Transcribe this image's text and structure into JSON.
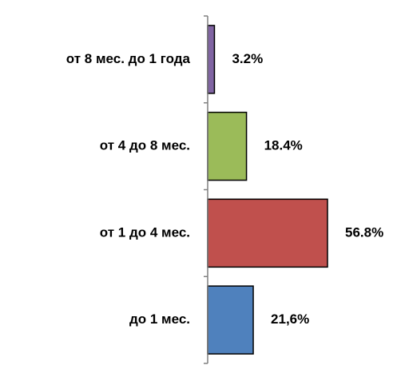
{
  "chart_data": {
    "type": "bar",
    "orientation": "horizontal",
    "title": "",
    "xlabel": "",
    "ylabel": "",
    "categories": [
      "до 1 мес.",
      "от 1 до 4 мес.",
      "от 4 до 8 мес.",
      "от 8 мес. до 1 года"
    ],
    "values": [
      21.6,
      56.8,
      18.4,
      3.2
    ],
    "value_labels": [
      "21,6%",
      "56.8%",
      "18.4%",
      "3.2%"
    ],
    "colors": [
      "#4F81BD",
      "#C0504D",
      "#9BBB59",
      "#8064A2"
    ],
    "xlim": [
      0,
      60
    ],
    "unit": "%",
    "grid": false,
    "legend": "none"
  }
}
